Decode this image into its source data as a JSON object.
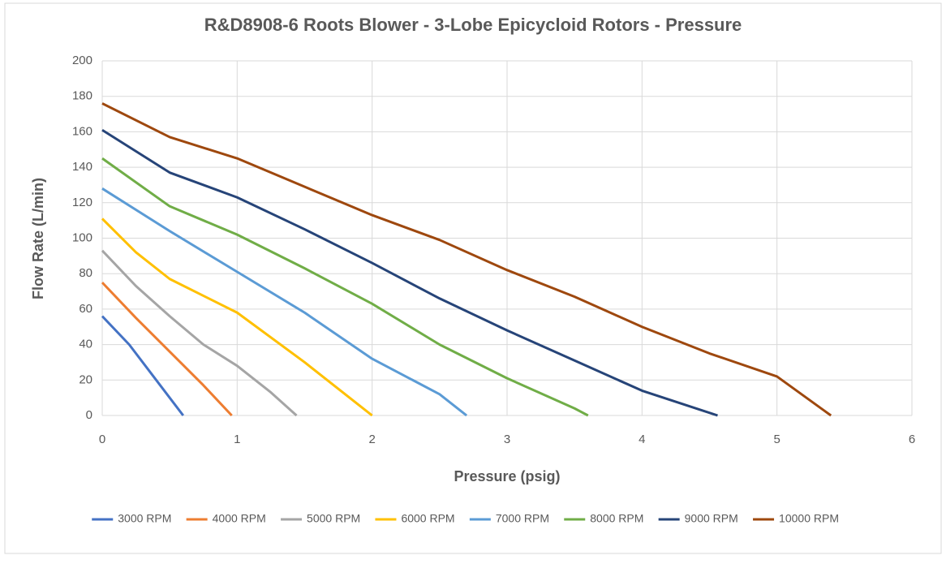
{
  "chart_data": {
    "type": "line",
    "title": "R&D8908-6 Roots Blower - 3-Lobe Epicycloid Rotors - Pressure",
    "x_label": "Pressure (psig)",
    "y_label": "Flow Rate (L/min)",
    "xlim": [
      0,
      6
    ],
    "xticks": [
      0,
      1,
      2,
      3,
      4,
      5,
      6
    ],
    "ylim": [
      0,
      200
    ],
    "yticks": [
      0,
      20,
      40,
      60,
      80,
      100,
      120,
      140,
      160,
      180,
      200
    ],
    "grid": true,
    "legend": "bottom",
    "series": [
      {
        "name": "3000 RPM",
        "color": "#4472c4",
        "x": [
          0,
          0.2,
          0.4,
          0.6
        ],
        "values": [
          56,
          40,
          20,
          0
        ]
      },
      {
        "name": "4000 RPM",
        "color": "#ed7d31",
        "x": [
          0,
          0.25,
          0.5,
          0.75,
          0.96
        ],
        "values": [
          75,
          55,
          36,
          17,
          0
        ]
      },
      {
        "name": "5000 RPM",
        "color": "#a5a5a5",
        "x": [
          0,
          0.25,
          0.5,
          0.75,
          1,
          1.25,
          1.44
        ],
        "values": [
          93,
          73,
          56,
          40,
          28,
          13,
          0
        ]
      },
      {
        "name": "6000 RPM",
        "color": "#ffc000",
        "x": [
          0,
          0.25,
          0.5,
          1,
          1.5,
          2
        ],
        "values": [
          111,
          92,
          77,
          58,
          30,
          0
        ]
      },
      {
        "name": "7000 RPM",
        "color": "#5b9bd5",
        "x": [
          0,
          0.5,
          1,
          1.5,
          2,
          2.5,
          2.7
        ],
        "values": [
          128,
          104,
          81,
          58,
          32,
          12,
          0
        ]
      },
      {
        "name": "8000 RPM",
        "color": "#70ad47",
        "x": [
          0,
          0.5,
          1,
          1.5,
          2,
          2.5,
          3,
          3.5,
          3.6
        ],
        "values": [
          145,
          118,
          102,
          83,
          63,
          40,
          21,
          4,
          0
        ]
      },
      {
        "name": "9000 RPM",
        "color": "#264478",
        "x": [
          0,
          0.5,
          1,
          1.5,
          2,
          2.5,
          3,
          3.5,
          4,
          4.56
        ],
        "values": [
          161,
          137,
          123,
          105,
          86,
          66,
          48,
          31,
          14,
          0
        ]
      },
      {
        "name": "10000 RPM",
        "color": "#9e480e",
        "x": [
          0,
          0.5,
          1,
          1.5,
          2,
          2.5,
          3,
          3.5,
          4,
          4.5,
          5,
          5.4
        ],
        "values": [
          176,
          157,
          145,
          129,
          113,
          99,
          82,
          67,
          50,
          35,
          22,
          0
        ]
      }
    ]
  }
}
